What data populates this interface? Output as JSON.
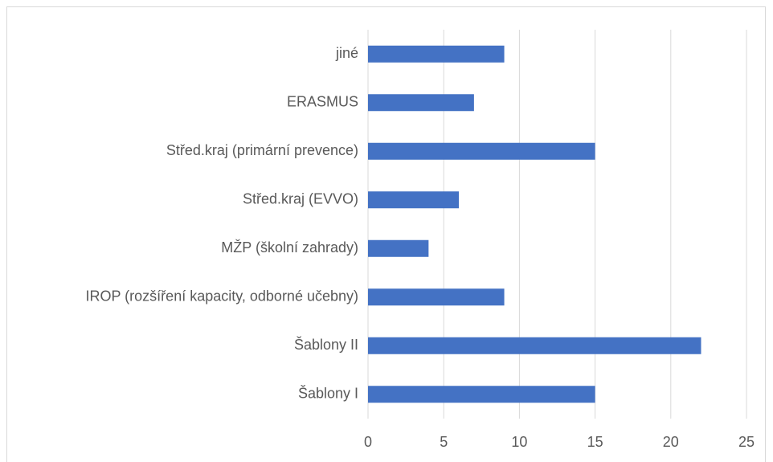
{
  "chart_data": {
    "type": "bar",
    "orientation": "horizontal",
    "categories": [
      "jiné",
      "ERASMUS",
      "Střed.kraj (primární prevence)",
      "Střed.kraj (EVVO)",
      "MŽP (školní zahrady)",
      "IROP (rozšíření kapacity, odborné učebny)",
      "Šablony II",
      "Šablony I"
    ],
    "values": [
      9,
      7,
      15,
      6,
      4,
      9,
      22,
      15
    ],
    "color": "#4472c4",
    "xlim": [
      0,
      25
    ],
    "xticks": [
      0,
      5,
      10,
      15,
      20,
      25
    ],
    "grid": true
  }
}
